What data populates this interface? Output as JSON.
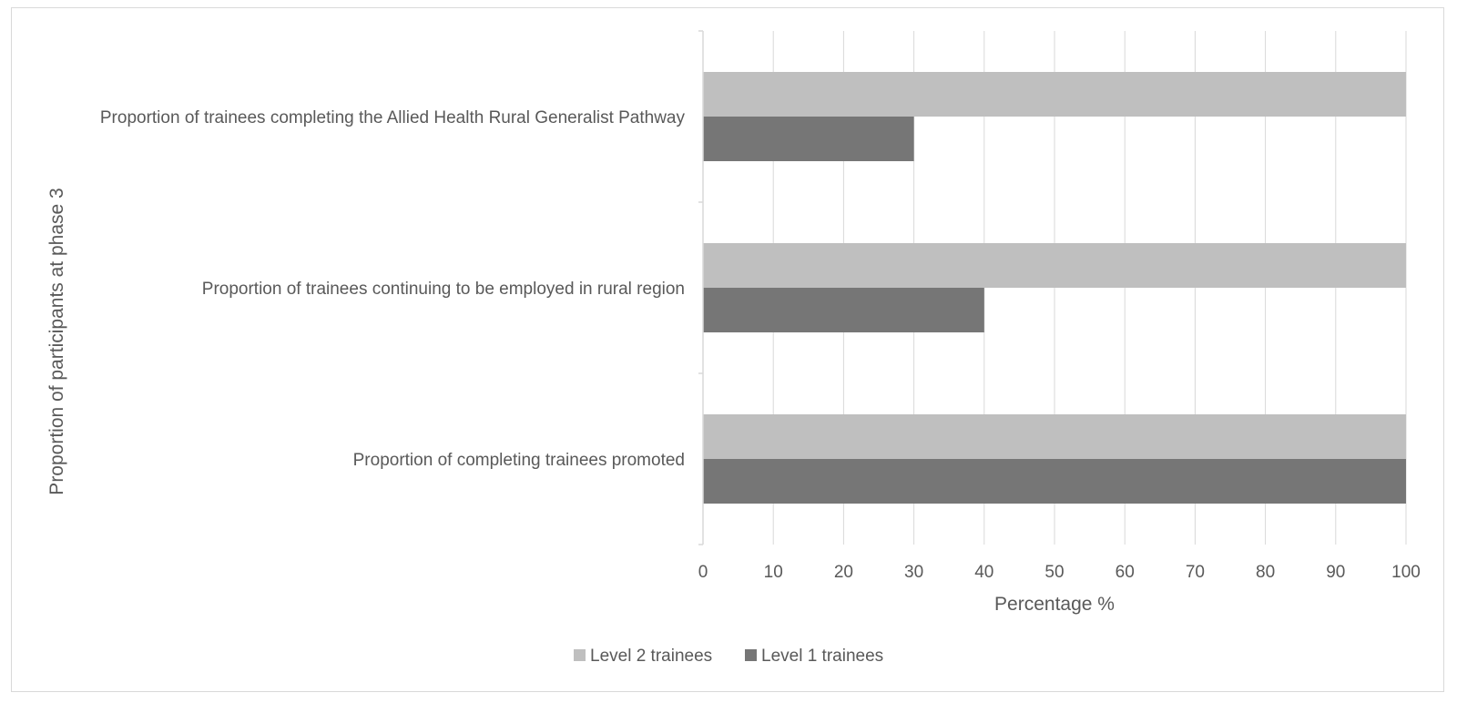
{
  "chart_data": {
    "type": "bar",
    "orientation": "horizontal",
    "categories": [
      "Proportion of trainees completing the Allied Health Rural Generalist Pathway",
      "Proportion of trainees continuing to be employed in rural region",
      "Proportion of completing trainees promoted"
    ],
    "series": [
      {
        "name": "Level 2 trainees",
        "color": "#bfbfbf",
        "values": [
          100,
          100,
          100
        ]
      },
      {
        "name": "Level 1 trainees",
        "color": "#767676",
        "values": [
          30,
          40,
          100
        ]
      }
    ],
    "xlabel": "Percentage %",
    "ylabel": "Proportion of participants at phase 3",
    "xlim": [
      0,
      100
    ],
    "xticks": [
      "0",
      "10",
      "20",
      "30",
      "40",
      "50",
      "60",
      "70",
      "80",
      "90",
      "100"
    ],
    "grid": true,
    "legend_position": "bottom"
  }
}
